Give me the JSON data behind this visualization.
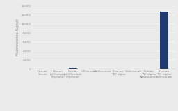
{
  "categories": [
    "Human\nSerum",
    "Human\nIgG/Isotype\n(Hyclone)",
    "Human\nIgG1/lambda\n(Hyclone)",
    "Infliximab",
    "Adalimumab",
    "Human\nTNF alpha",
    "Golimumab",
    "Human\nTNF alpha/\nAdalimumab",
    "Human\nTNF alpha/\nGolimumab"
  ],
  "values": [
    50,
    60,
    200,
    80,
    90,
    70,
    80,
    75,
    12600
  ],
  "bar_color": "#1e3a6e",
  "ylabel": "Fluorescence Signal",
  "ylim": [
    0,
    14000
  ],
  "yticks": [
    0,
    2000,
    4000,
    6000,
    8000,
    10000,
    12000,
    14000
  ],
  "background_color": "#ebebeb",
  "grid_color": "#ffffff",
  "tick_label_fontsize": 3.0,
  "ylabel_fontsize": 3.8,
  "tick_color": "#888888"
}
